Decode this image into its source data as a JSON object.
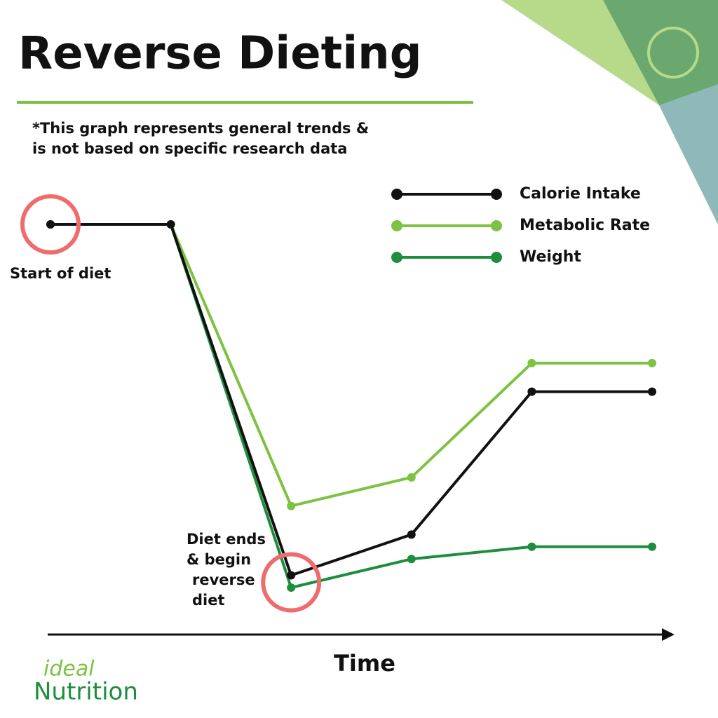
{
  "chart_data": {
    "type": "line",
    "title": "Reverse Dieting",
    "subtitle": [
      "*This graph represents general trends &",
      "is not based on specific research data"
    ],
    "xlabel": "Time",
    "categories": [
      null,
      null,
      null,
      null,
      null,
      null
    ],
    "series": [
      {
        "name": "Calorie Intake",
        "color": "#111111",
        "values": [
          100,
          100,
          14,
          24,
          59,
          59
        ]
      },
      {
        "name": "Metabolic Rate",
        "color": "#7dc242",
        "values": [
          100,
          100,
          31,
          38,
          66,
          66
        ]
      },
      {
        "name": "Weight",
        "color": "#1e8e3e",
        "values": [
          100,
          100,
          11,
          18,
          21,
          21
        ]
      }
    ],
    "annotations": [
      {
        "lines": [
          "Start of diet"
        ],
        "index": 0,
        "series": 0
      },
      {
        "lines": [
          "Diet ends",
          "& begin",
          "reverse",
          "diet"
        ],
        "index": 2,
        "series": 0
      }
    ],
    "logo": [
      "ideal",
      "Nutrition"
    ]
  }
}
